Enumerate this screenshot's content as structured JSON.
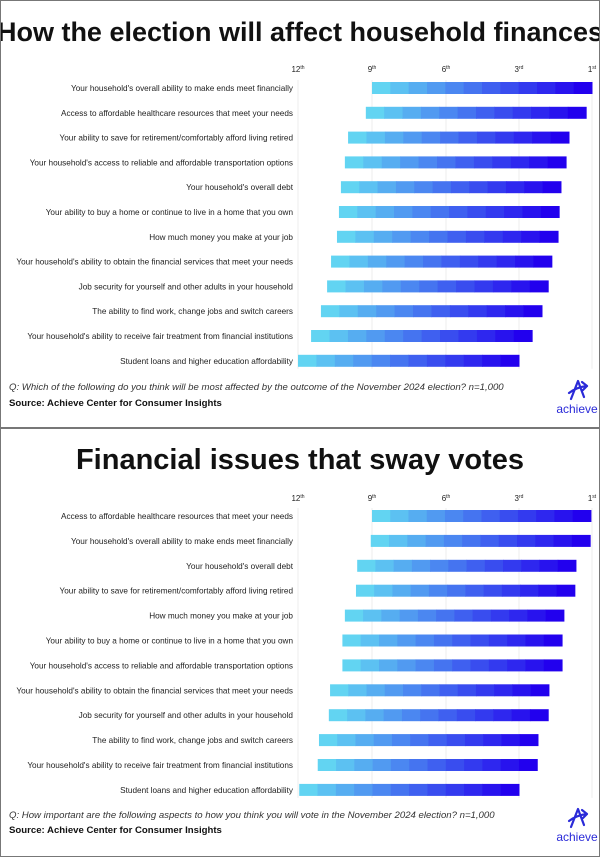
{
  "colors": {
    "bar_light": "#62d4f2",
    "bar_dark": "#2200ee",
    "logo": "#2a2ad8",
    "grid": "#ececec"
  },
  "chart_data": [
    {
      "type": "bar",
      "orientation": "horizontal",
      "title": "How the election will affect household finances",
      "axis_ticks": [
        "12th",
        "9th",
        "6th",
        "3rd",
        "1st"
      ],
      "axis_tick_values": [
        12,
        9,
        6,
        3,
        1
      ],
      "xlim": [
        12,
        1
      ],
      "grid": true,
      "categories": [
        "Your household's overall ability to make ends meet financially",
        "Access to affordable healthcare resources that meet your needs",
        "Your ability to save for retirement/comfortably afford living retired",
        "Your household's access to reliable and affordable transportation options",
        "Your household's overall debt",
        "Your ability to buy a home or continue to live in a home that you own",
        "How much money you make at your job",
        "Your household's ability to obtain the financial services that meet your needs",
        "Job security for yourself and other adults in your household",
        "The ability to find work, change jobs and switch careers",
        "Your household's ability to receive fair treatment from financial institutions",
        "Student loans and higher education affordability"
      ],
      "bar_start_rank": [
        9.0,
        9.25,
        9.97,
        10.1,
        10.26,
        10.34,
        10.42,
        10.66,
        10.82,
        11.07,
        11.47,
        12.0
      ],
      "bar_end_rank": [
        1.0,
        1.16,
        1.63,
        1.71,
        1.85,
        1.9,
        1.93,
        2.1,
        2.2,
        2.37,
        2.64,
        3.0
      ],
      "question": "Q: Which of the following do you think will be most affected by the outcome of the November 2024 election? n=1,000",
      "source": "Source: Achieve Center for Consumer Insights"
    },
    {
      "type": "bar",
      "orientation": "horizontal",
      "title": "Financial issues that sway votes",
      "axis_ticks": [
        "12th",
        "9th",
        "6th",
        "3rd",
        "1st"
      ],
      "axis_tick_values": [
        12,
        9,
        6,
        3,
        1
      ],
      "xlim": [
        12,
        1
      ],
      "grid": true,
      "categories": [
        "Access to affordable healthcare resources that meet your needs",
        "Your household's overall ability to make ends meet financially",
        "Your household's overall debt",
        "Your ability to save for retirement/comfortably afford living retired",
        "How much money you make at your job",
        "Your ability to buy a home or continue to live in a home that you own",
        "Your household's access to reliable and affordable transportation options",
        "Your household's ability to obtain the financial services that meet your needs",
        "Job security for yourself and other adults in your household",
        "The ability to find work, change jobs and switch careers",
        "Your household's ability to receive fair treatment from financial institutions",
        "Student loans and higher education affordability"
      ],
      "bar_start_rank": [
        9.0,
        9.05,
        9.6,
        9.65,
        10.1,
        10.2,
        10.2,
        10.7,
        10.75,
        11.15,
        11.2,
        11.95
      ],
      "bar_end_rank": [
        1.03,
        1.05,
        1.44,
        1.47,
        1.77,
        1.82,
        1.82,
        2.18,
        2.2,
        2.48,
        2.5,
        3.0
      ],
      "question": "Q: How important are the following aspects to how you think you will vote in the November 2024 election? n=1,000",
      "source": "Source: Achieve Center for Consumer Insights"
    }
  ],
  "logo": {
    "text": "achieve"
  }
}
